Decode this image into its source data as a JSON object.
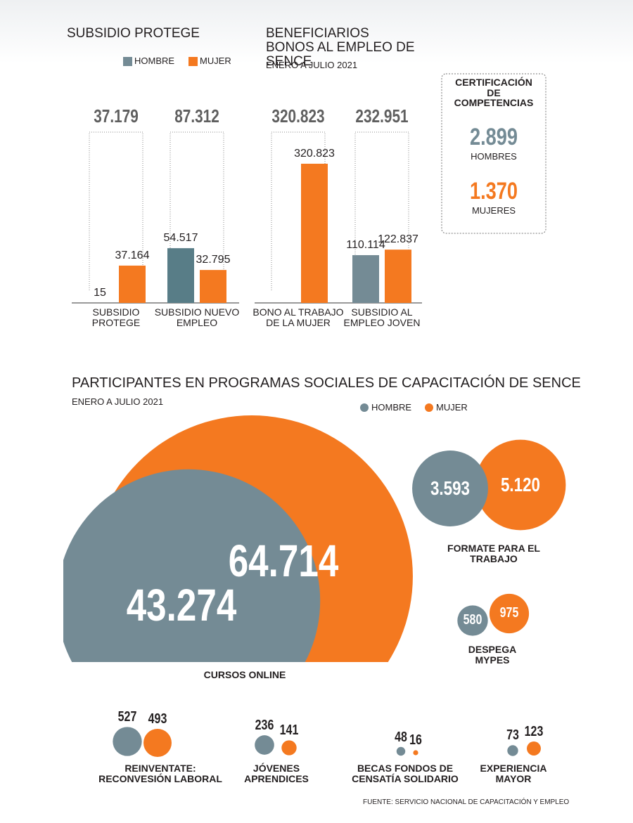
{
  "chart_data": [
    {
      "type": "bar",
      "title": "SUBSIDIO PROTEGE",
      "categories": [
        "SUBSIDIO PROTEGE",
        "SUBSIDIO NUEVO EMPLEO"
      ],
      "totals": [
        37179,
        87312
      ],
      "total_labels": [
        "37.179",
        "87.312"
      ],
      "series": [
        {
          "name": "HOMBRE",
          "color": "#748b95",
          "values": [
            15,
            54517
          ],
          "value_labels": [
            "15",
            "54.517"
          ]
        },
        {
          "name": "MUJER",
          "color": "#f47920",
          "values": [
            37164,
            32795
          ],
          "value_labels": [
            "37.164",
            "32.795"
          ]
        }
      ],
      "ylim": [
        0,
        140000
      ]
    },
    {
      "type": "bar",
      "title": "BENEFICIARIOS BONOS AL EMPLEO DE SENCE",
      "subtitle": "ENERO A JULIO 2021",
      "categories": [
        "BONO AL TRABAJO DE LA MUJER",
        "SUBSIDIO AL EMPLEO JOVEN"
      ],
      "totals": [
        320823,
        232951
      ],
      "total_labels": [
        "320.823",
        "232.951"
      ],
      "series": [
        {
          "color": "#748b95",
          "values": [
            null,
            110114
          ],
          "value_labels": [
            null,
            "110.114"
          ]
        },
        {
          "color": "#f47920",
          "values": [
            320823,
            122837
          ],
          "value_labels": [
            "320.823",
            "122.837"
          ]
        }
      ],
      "ylim": [
        0,
        324000
      ]
    },
    {
      "type": "bubble",
      "title": "PARTICIPANTES EN PROGRAMAS SOCIALES DE CAPACITACIÓN DE SENCE",
      "subtitle": "ENERO A JULIO 2021",
      "categories": [
        "CURSOS ONLINE",
        "FORMATE PARA EL TRABAJO",
        "DESPEGA MYPES",
        "REINVENTATE: RECONVESIÓN LABORAL",
        "JÓVENES APRENDICES",
        "BECAS FONDOS DE CENSATÍA SOLIDARIO",
        "EXPERIENCIA MAYOR"
      ],
      "series": [
        {
          "name": "HOMBRE",
          "color": "#748b95",
          "values": [
            43274,
            3593,
            580,
            527,
            236,
            48,
            73
          ],
          "value_labels": [
            "43.274",
            "3.593",
            "580",
            "527",
            "236",
            "48",
            "73"
          ]
        },
        {
          "name": "MUJER",
          "color": "#f47920",
          "values": [
            64714,
            5120,
            975,
            493,
            141,
            16,
            123
          ],
          "value_labels": [
            "64.714",
            "5.120",
            "975",
            "493",
            "141",
            "16",
            "123"
          ]
        }
      ]
    }
  ],
  "certificacion": {
    "title": "CERTIFICACIÓN DE COMPETENCIAS",
    "items": [
      {
        "value": 2899,
        "value_label": "2.899",
        "label": "HOMBRES",
        "color": "#748b95"
      },
      {
        "value": 1370,
        "value_label": "1.370",
        "label": "MUJERES",
        "color": "#f47920"
      }
    ]
  },
  "source": "FUENTE: SERVICIO NACIONAL DE CAPACITACIÓN Y EMPLEO"
}
